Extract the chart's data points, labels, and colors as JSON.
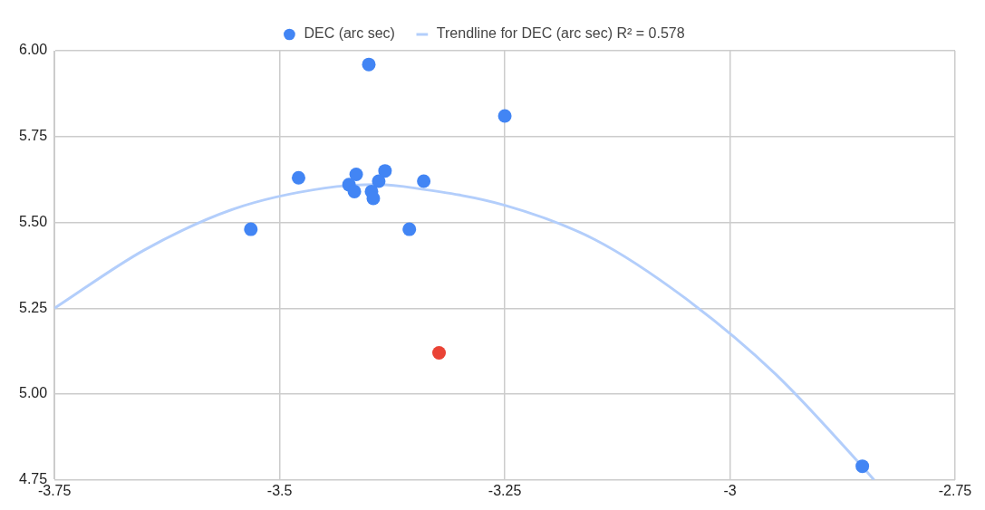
{
  "chart_data": {
    "type": "scatter",
    "legend": "top",
    "grid": true,
    "marker": "circle",
    "xlim": [
      -3.75,
      -2.75
    ],
    "xticks": [
      -3.75,
      -3.5,
      -3.25,
      -3,
      -2.75
    ],
    "ylim": [
      4.75,
      6
    ],
    "yticks": [
      {
        "value": 4.75,
        "label": "4.75"
      },
      {
        "value": 5,
        "label": "5.00"
      },
      {
        "value": 5.25,
        "label": "5.25"
      },
      {
        "value": 5.5,
        "label": "5.50"
      },
      {
        "value": 5.75,
        "label": "5.75"
      },
      {
        "value": 6,
        "label": "6.00"
      }
    ],
    "series": [
      {
        "name": "DEC (arc sec)",
        "color": "#4285f4",
        "x": [
          -3.401,
          -3.25,
          -3.479,
          -3.415,
          -3.383,
          -3.34,
          -3.423,
          -3.417,
          -3.39,
          -3.398,
          -3.396,
          -3.532,
          -3.356,
          -3.323,
          -2.853
        ],
        "values": [
          5.96,
          5.81,
          5.63,
          5.64,
          5.65,
          5.62,
          5.61,
          5.59,
          5.62,
          5.59,
          5.57,
          5.48,
          5.48,
          5.12,
          4.79
        ],
        "colors": [
          "#4285f4",
          "#4285f4",
          "#4285f4",
          "#4285f4",
          "#4285f4",
          "#4285f4",
          "#4285f4",
          "#4285f4",
          "#4285f4",
          "#4285f4",
          "#4285f4",
          "#4285f4",
          "#4285f4",
          "#ea4335",
          "#4285f4"
        ]
      },
      {
        "name": "Trendline for DEC (arc sec) R² = 0.578",
        "type": "line",
        "color": "#b3cefb",
        "marker": "none",
        "x": [
          -3.75,
          -3.65,
          -3.55,
          -3.45,
          -3.39,
          -3.35,
          -3.25,
          -3.15,
          -3.05,
          -2.95,
          -2.85,
          -2.84
        ],
        "values": [
          5.25,
          5.42,
          5.54,
          5.6,
          5.61,
          5.6,
          5.55,
          5.45,
          5.28,
          5.06,
          4.78,
          4.75
        ]
      }
    ]
  }
}
